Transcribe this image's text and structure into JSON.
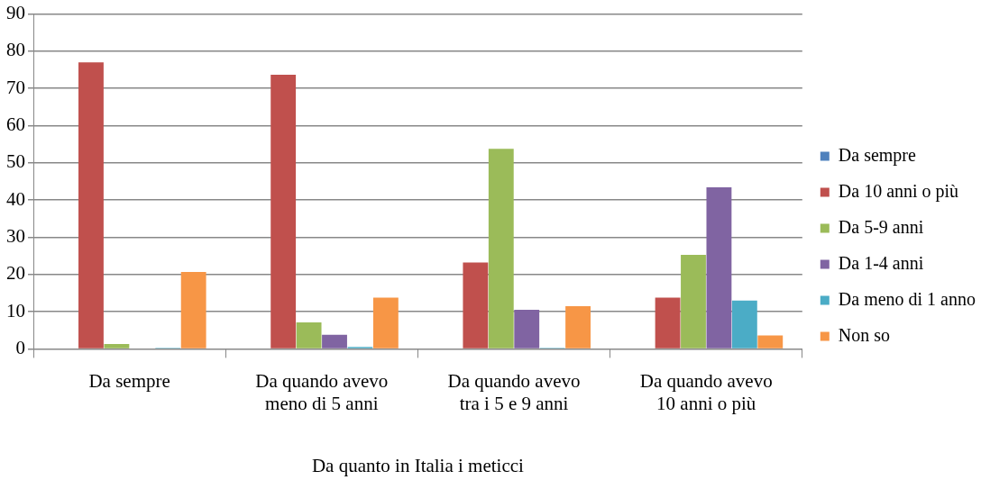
{
  "chart_data": {
    "type": "bar",
    "xlabel": "Da quanto in Italia i meticci",
    "categories": [
      "Da sempre",
      "Da quando avevo meno di 5 anni",
      "Da quando avevo tra i 5 e 9 anni",
      "Da quando avevo 10 anni o più"
    ],
    "series": [
      {
        "name": "Da sempre",
        "color": "#4f81bd",
        "values": [
          0,
          0,
          0,
          0
        ]
      },
      {
        "name": "Da 10 anni o più",
        "color": "#c0504d",
        "values": [
          77.0,
          73.7,
          23.2,
          13.8
        ]
      },
      {
        "name": "Da 5-9 anni",
        "color": "#9bbb59",
        "values": [
          1.3,
          7.1,
          53.8,
          25.3
        ]
      },
      {
        "name": "Da 1-4 anni",
        "color": "#8064a2",
        "values": [
          0,
          3.8,
          10.5,
          43.4
        ]
      },
      {
        "name": "Da meno di 1 anno",
        "color": "#4bacc6",
        "values": [
          0.3,
          0.5,
          0.3,
          13.0
        ]
      },
      {
        "name": "Non so",
        "color": "#f79646",
        "values": [
          20.7,
          13.8,
          11.5,
          3.6
        ]
      }
    ],
    "ylim": [
      0,
      90
    ],
    "yticks": [
      0,
      10,
      20,
      30,
      40,
      50,
      60,
      70,
      80,
      90
    ],
    "grid": "y",
    "legend": "right"
  }
}
